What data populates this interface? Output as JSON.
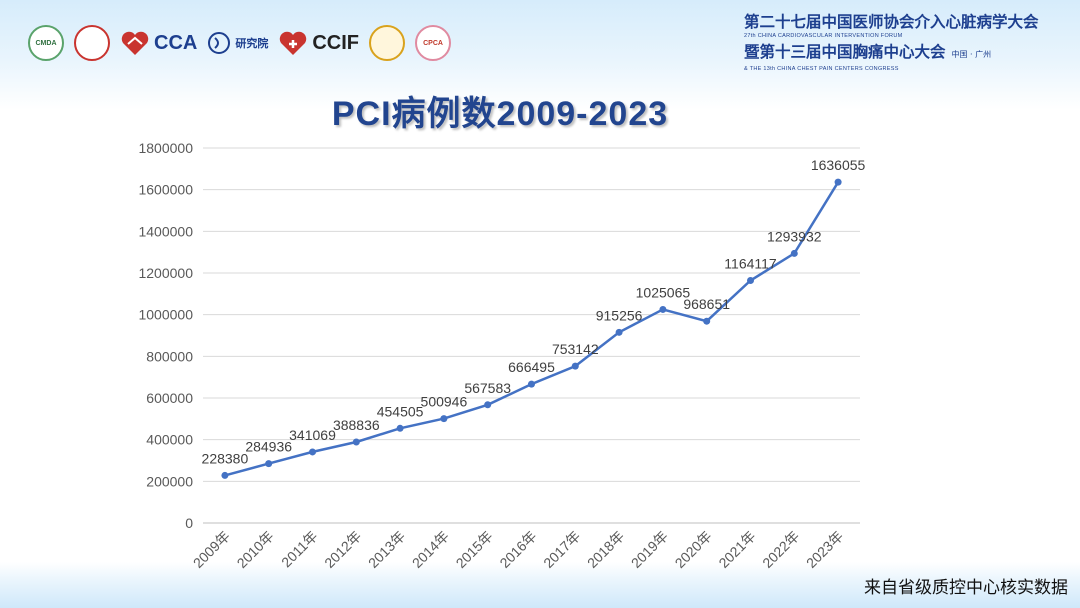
{
  "header": {
    "logos": [
      {
        "name": "cmda-logo",
        "text": "CMDA"
      },
      {
        "name": "red-ring-logo",
        "text": ""
      },
      {
        "name": "cca-logo",
        "text": "CCA"
      },
      {
        "name": "heart-institute-logo",
        "text": "研究院"
      },
      {
        "name": "ccif-logo",
        "text": "CCIF"
      },
      {
        "name": "gold-seal-logo",
        "text": ""
      },
      {
        "name": "cpca-logo",
        "text": "CPCA"
      }
    ],
    "conference_line1": "第二十七届中国医师协会介入心脏病学大会",
    "conference_sub1": "27th CHINA CARDIOVASCULAR INTERVENTION FORUM",
    "conference_line2": "暨第十三届中国胸痛中心大会",
    "conference_sub2": "& THE 13th CHINA CHEST PAIN CENTERS CONGRESS",
    "conference_place": "中国 · 广州"
  },
  "chart_data": {
    "type": "line",
    "title": "PCI病例数2009-2023",
    "categories": [
      "2009年",
      "2010年",
      "2011年",
      "2012年",
      "2013年",
      "2014年",
      "2015年",
      "2016年",
      "2017年",
      "2018年",
      "2019年",
      "2020年",
      "2021年",
      "2022年",
      "2023年"
    ],
    "series": [
      {
        "values": [
          228380,
          284936,
          341069,
          388836,
          454505,
          500946,
          567583,
          666495,
          753142,
          915256,
          1025065,
          968651,
          1164117,
          1293932,
          1636055
        ]
      }
    ],
    "ylim": [
      0,
      1800000
    ],
    "yticks": [
      0,
      200000,
      400000,
      600000,
      800000,
      1000000,
      1200000,
      1400000,
      1600000,
      1800000
    ],
    "grid": true,
    "data_labels": true,
    "line_color": "#4472c4"
  },
  "footer": {
    "source": "来自省级质控中心核实数据"
  }
}
